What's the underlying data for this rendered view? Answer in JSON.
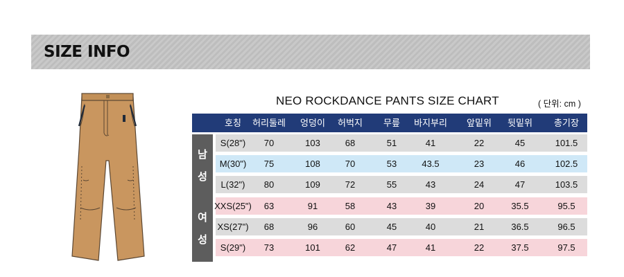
{
  "banner": {
    "title": "SIZE INFO"
  },
  "chart": {
    "title": "NEO ROCKDANCE PANTS SIZE CHART",
    "unit": "( 단위: cm )"
  },
  "table": {
    "headers": [
      "호칭",
      "허리둘레",
      "엉덩이",
      "허벅지",
      "무릎",
      "바지부리",
      "앞밑위",
      "뒷밑위",
      "총기장"
    ],
    "groups": [
      {
        "label_chars": [
          "남",
          "성"
        ],
        "rows": [
          [
            "S(28\")",
            "70",
            "103",
            "68",
            "51",
            "41",
            "22",
            "45",
            "101.5"
          ],
          [
            "M(30\")",
            "75",
            "108",
            "70",
            "53",
            "43.5",
            "23",
            "46",
            "102.5"
          ],
          [
            "L(32\")",
            "80",
            "109",
            "72",
            "55",
            "43",
            "24",
            "47",
            "103.5"
          ]
        ]
      },
      {
        "label_chars": [
          "여",
          "성"
        ],
        "rows": [
          [
            "XXS(25\")",
            "63",
            "91",
            "58",
            "43",
            "39",
            "20",
            "35.5",
            "95.5"
          ],
          [
            "XS(27\")",
            "68",
            "96",
            "60",
            "45",
            "40",
            "21",
            "36.5",
            "96.5"
          ],
          [
            "S(29\")",
            "73",
            "101",
            "62",
            "47",
            "41",
            "22",
            "37.5",
            "97.5"
          ]
        ]
      }
    ],
    "row_colors": [
      "#dcdcdc",
      "#cfe8f7",
      "#dcdcdc",
      "#f7d5da",
      "#dcdcdc",
      "#f7d5da"
    ]
  },
  "image": {
    "icon": "pants-illustration"
  }
}
